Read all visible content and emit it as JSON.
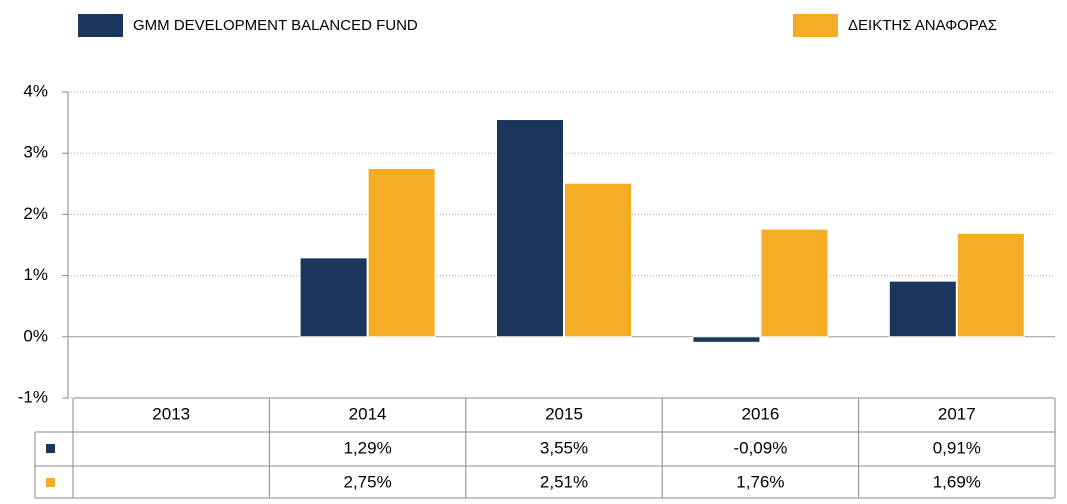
{
  "chart_data": {
    "type": "bar",
    "categories": [
      "2013",
      "2014",
      "2015",
      "2016",
      "2017"
    ],
    "series": [
      {
        "name": "GMM DEVELOPMENT BALANCED FUND",
        "color": "#1b365d",
        "values": [
          null,
          1.29,
          3.55,
          -0.09,
          0.91
        ],
        "value_labels": [
          null,
          "1,29%",
          "3,55%",
          "-0,09%",
          "0,91%"
        ]
      },
      {
        "name": "ΔΕΙΚΤΗΣ ΑΝΑΦΟΡΑΣ",
        "color": "#f5ad26",
        "values": [
          null,
          2.75,
          2.51,
          1.76,
          1.69
        ],
        "value_labels": [
          null,
          "2,75%",
          "2,51%",
          "1,76%",
          "1,69%"
        ]
      }
    ],
    "ylim": [
      -1,
      4
    ],
    "yticks": [
      {
        "value": -1,
        "label": "-1%"
      },
      {
        "value": 0,
        "label": "0%"
      },
      {
        "value": 1,
        "label": "1%"
      },
      {
        "value": 2,
        "label": "2%"
      },
      {
        "value": 3,
        "label": "3%"
      },
      {
        "value": 4,
        "label": "4%"
      }
    ],
    "grid": true
  }
}
